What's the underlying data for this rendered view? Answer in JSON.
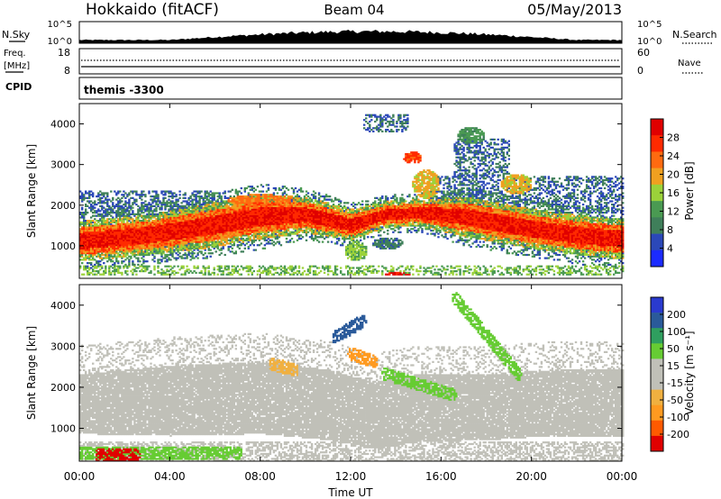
{
  "header": {
    "station": "Hokkaido (fitACF)",
    "beam": "Beam 04",
    "date": "05/May/2013"
  },
  "param_panels": {
    "nsky": {
      "label": "N.Sky",
      "left_ticks": [
        "10^5",
        "10^0"
      ],
      "right_ticks": [
        "10^5",
        "10^0"
      ],
      "right_label": "N.Search"
    },
    "freq": {
      "label_line1": "Freq.",
      "label_line2": "[MHz]",
      "left_ticks": [
        "18",
        "8"
      ],
      "right_ticks": [
        "60",
        "0"
      ],
      "right_label": "Nave"
    },
    "cpid": {
      "label": "CPID",
      "value": "themis -3300"
    }
  },
  "colors": {
    "power": [
      "#1b2bff",
      "#2b48b8",
      "#3f7f5a",
      "#4a9a52",
      "#9bd23a",
      "#f0a020",
      "#ff6a10",
      "#ff2a00",
      "#e00000"
    ],
    "velocity": [
      "#e00000",
      "#ff5a00",
      "#ff9a20",
      "#f0b040",
      "#c0c0b8",
      "#c0c0b8",
      "#66cc33",
      "#2f9f5f",
      "#2a5a9a",
      "#2a3acf"
    ]
  },
  "chart_data": [
    {
      "type": "heatmap",
      "name": "power",
      "ylabel": "Slant Range [km]",
      "yticks": [
        "1000",
        "2000",
        "3000",
        "4000"
      ],
      "ylim": [
        200,
        4500
      ],
      "xlim": [
        0,
        24
      ],
      "colorbar": {
        "label": "Power [dB]",
        "ticks": [
          "4",
          "8",
          "12",
          "16",
          "20",
          "24",
          "28"
        ],
        "range": [
          0,
          32
        ]
      },
      "scatter_bands": [
        {
          "t0": 0,
          "t1": 24,
          "r0": 250,
          "r1": 500,
          "level": 3
        },
        {
          "t0": 0,
          "t1": 6,
          "r0": 1700,
          "r1": 2350,
          "level": 1
        },
        {
          "t0": 15.5,
          "t1": 24,
          "r0": 1800,
          "r1": 2700,
          "level": 1
        },
        {
          "t0": 12.5,
          "t1": 14.5,
          "r0": 3800,
          "r1": 4200,
          "level": 1
        },
        {
          "t0": 16.5,
          "t1": 19,
          "r0": 2700,
          "r1": 3600,
          "level": 1
        }
      ],
      "main_band": [
        {
          "t": 0,
          "center": 1100,
          "width": 450
        },
        {
          "t": 3,
          "center": 1250,
          "width": 450
        },
        {
          "t": 6,
          "center": 1500,
          "width": 500
        },
        {
          "t": 8,
          "center": 1700,
          "width": 500
        },
        {
          "t": 10,
          "center": 1750,
          "width": 400
        },
        {
          "t": 12,
          "center": 1500,
          "width": 350
        },
        {
          "t": 13.5,
          "center": 1750,
          "width": 300
        },
        {
          "t": 15,
          "center": 1800,
          "width": 300
        },
        {
          "t": 17,
          "center": 1700,
          "width": 450
        },
        {
          "t": 20,
          "center": 1400,
          "width": 450
        },
        {
          "t": 22,
          "center": 1250,
          "width": 450
        },
        {
          "t": 24,
          "center": 1150,
          "width": 450
        }
      ],
      "blobs": [
        {
          "t": 14.7,
          "r": 3150,
          "rt": 0.4,
          "rr": 150,
          "level": 7
        },
        {
          "t": 15.3,
          "r": 2500,
          "rt": 0.6,
          "rr": 350,
          "level": 5
        },
        {
          "t": 17.3,
          "r": 3700,
          "rt": 0.6,
          "rr": 200,
          "level": 3
        },
        {
          "t": 13.6,
          "r": 1050,
          "rt": 0.7,
          "rr": 150,
          "level": 2
        },
        {
          "t": 12.2,
          "r": 850,
          "rt": 0.5,
          "rr": 250,
          "level": 4
        },
        {
          "t": 19.3,
          "r": 2500,
          "rt": 0.7,
          "rr": 250,
          "level": 5
        },
        {
          "t": 14,
          "r": 290,
          "rt": 0.6,
          "rr": 40,
          "level": 8
        },
        {
          "t": 8,
          "r": 2100,
          "rt": 1.5,
          "rr": 150,
          "level": 6
        }
      ]
    },
    {
      "type": "heatmap",
      "name": "velocity",
      "ylabel": "Slant Range [km]",
      "yticks": [
        "1000",
        "2000",
        "3000",
        "4000"
      ],
      "ylim": [
        200,
        4500
      ],
      "xlim": [
        0,
        24
      ],
      "xlabel": "Time UT",
      "xticks": [
        "00:00",
        "04:00",
        "08:00",
        "12:00",
        "16:00",
        "20:00",
        "00:00"
      ],
      "colorbar": {
        "label": "Velocity [m s⁻¹]",
        "ticks": [
          "200",
          "100",
          "50",
          "15",
          "-15",
          "-50",
          "-100",
          "-200"
        ],
        "range": [
          -250,
          250
        ]
      },
      "gray_region": [
        {
          "t": 0,
          "r0": 850,
          "r1": 2300
        },
        {
          "t": 4,
          "r0": 800,
          "r1": 2500
        },
        {
          "t": 8,
          "r0": 850,
          "r1": 2600
        },
        {
          "t": 11,
          "r0": 700,
          "r1": 2400
        },
        {
          "t": 13,
          "r0": 500,
          "r1": 2100
        },
        {
          "t": 15,
          "r0": 650,
          "r1": 2300
        },
        {
          "t": 18,
          "r0": 700,
          "r1": 2300
        },
        {
          "t": 21,
          "r0": 800,
          "r1": 2400
        },
        {
          "t": 24,
          "r0": 800,
          "r1": 2400
        }
      ],
      "features": [
        {
          "t0": 16.6,
          "r0": 4150,
          "t1": 19.4,
          "r1": 2300,
          "value": 60
        },
        {
          "t0": 13.5,
          "r0": 2300,
          "t1": 16.5,
          "r1": 1800,
          "value": 40
        },
        {
          "t0": 11.3,
          "r0": 3200,
          "t1": 12.5,
          "r1": 3600,
          "value": 120
        },
        {
          "t0": 0,
          "r0": 380,
          "t1": 7,
          "r1": 380,
          "value": 40
        },
        {
          "t0": 12,
          "r0": 2800,
          "t1": 13,
          "r1": 2600,
          "value": -60
        },
        {
          "t0": 8.5,
          "r0": 2550,
          "t1": 9.5,
          "r1": 2400,
          "value": -40
        },
        {
          "t0": 0.8,
          "r0": 320,
          "t1": 2.5,
          "r1": 320,
          "value": -200
        }
      ]
    }
  ]
}
